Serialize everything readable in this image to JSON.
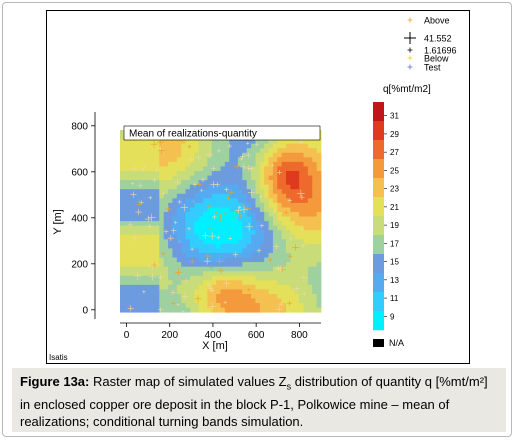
{
  "chart_data": {
    "type": "heatmap",
    "title": "Mean of realizations-quantity",
    "xlabel": "X [m]",
    "ylabel": "Y [m]",
    "xlim": [
      -30,
      900
    ],
    "ylim": [
      -40,
      860
    ],
    "x_ticks": [
      "0",
      "200",
      "400",
      "600",
      "800"
    ],
    "y_ticks": [
      "0",
      "200",
      "400",
      "600",
      "800"
    ],
    "colorbar": {
      "label": "q[%mt/m2]",
      "ticks": [
        "31",
        "29",
        "27",
        "25",
        "23",
        "21",
        "19",
        "17",
        "15",
        "13",
        "11",
        "9"
      ],
      "min": 7.5,
      "max": 32.5,
      "na_label": "N/A",
      "colors": [
        "#00f0ff",
        "#33ccff",
        "#55aaf0",
        "#6d9be0",
        "#9ed0a0",
        "#c8dc7a",
        "#e4e05a",
        "#f4c050",
        "#f49a3c",
        "#ee6a2c",
        "#dd3a1e",
        "#c0161a"
      ]
    },
    "legend": {
      "items": [
        {
          "label": "Above",
          "color": "#f0a020"
        },
        {
          "label": "41.552",
          "color": "#000000"
        },
        {
          "label": "1.61696",
          "color": "#000000"
        },
        {
          "label": "Below",
          "color": "#f0d020"
        },
        {
          "label": "Test",
          "color": "#5a6ae0"
        }
      ]
    },
    "grid": false,
    "software_label": "Isatis"
  },
  "caption": {
    "label": "Figure 13a:",
    "text_a": " Raster map of simulated values Z",
    "subscript": "s",
    "text_b": " distribution of quantity q [%mt/m²] in enclosed copper ore deposit in the block P-1, Polkowice mine – mean of realizations; conditional turning bands simulation."
  }
}
